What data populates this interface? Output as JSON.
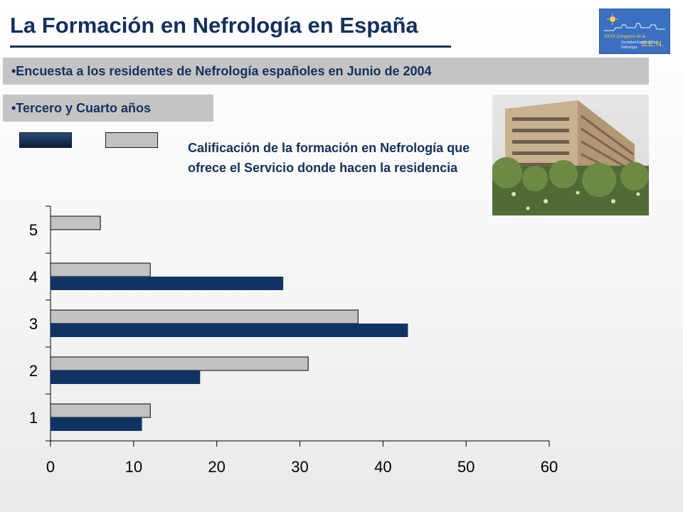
{
  "header": {
    "title": "La Formación en Nefrología en España"
  },
  "banners": {
    "survey": "•Encuesta a los residentes de Nefrología españoles en Junio de 2004",
    "years": "•Tercero y Cuarto años"
  },
  "logo": {
    "text_line1": "XXXV Congreso de la",
    "text_line2": "Sociedad Española de",
    "text_line3": "Nefrología",
    "brand": "S.E.N."
  },
  "colors": {
    "title": "#14305c",
    "series_dark": "#0f3464",
    "series_light": "#c2c2c2",
    "banner": "#c4c4c4"
  },
  "chart_data": {
    "type": "bar",
    "orientation": "horizontal",
    "description_text": "Calificación de la formación en Nefrología que ofrece el Servicio donde hacen la residencia",
    "categories": [
      "1",
      "2",
      "3",
      "4",
      "5"
    ],
    "series": [
      {
        "values": [
          11,
          18,
          43,
          28,
          0
        ],
        "color": "#0f3464"
      },
      {
        "values": [
          12,
          31,
          37,
          12,
          6
        ],
        "color": "#c2c2c2"
      }
    ],
    "xlim": [
      0,
      60
    ],
    "x_ticks": [
      0,
      10,
      20,
      30,
      40,
      50,
      60
    ],
    "grid": false,
    "legend": "top-left, unlabeled swatches"
  }
}
